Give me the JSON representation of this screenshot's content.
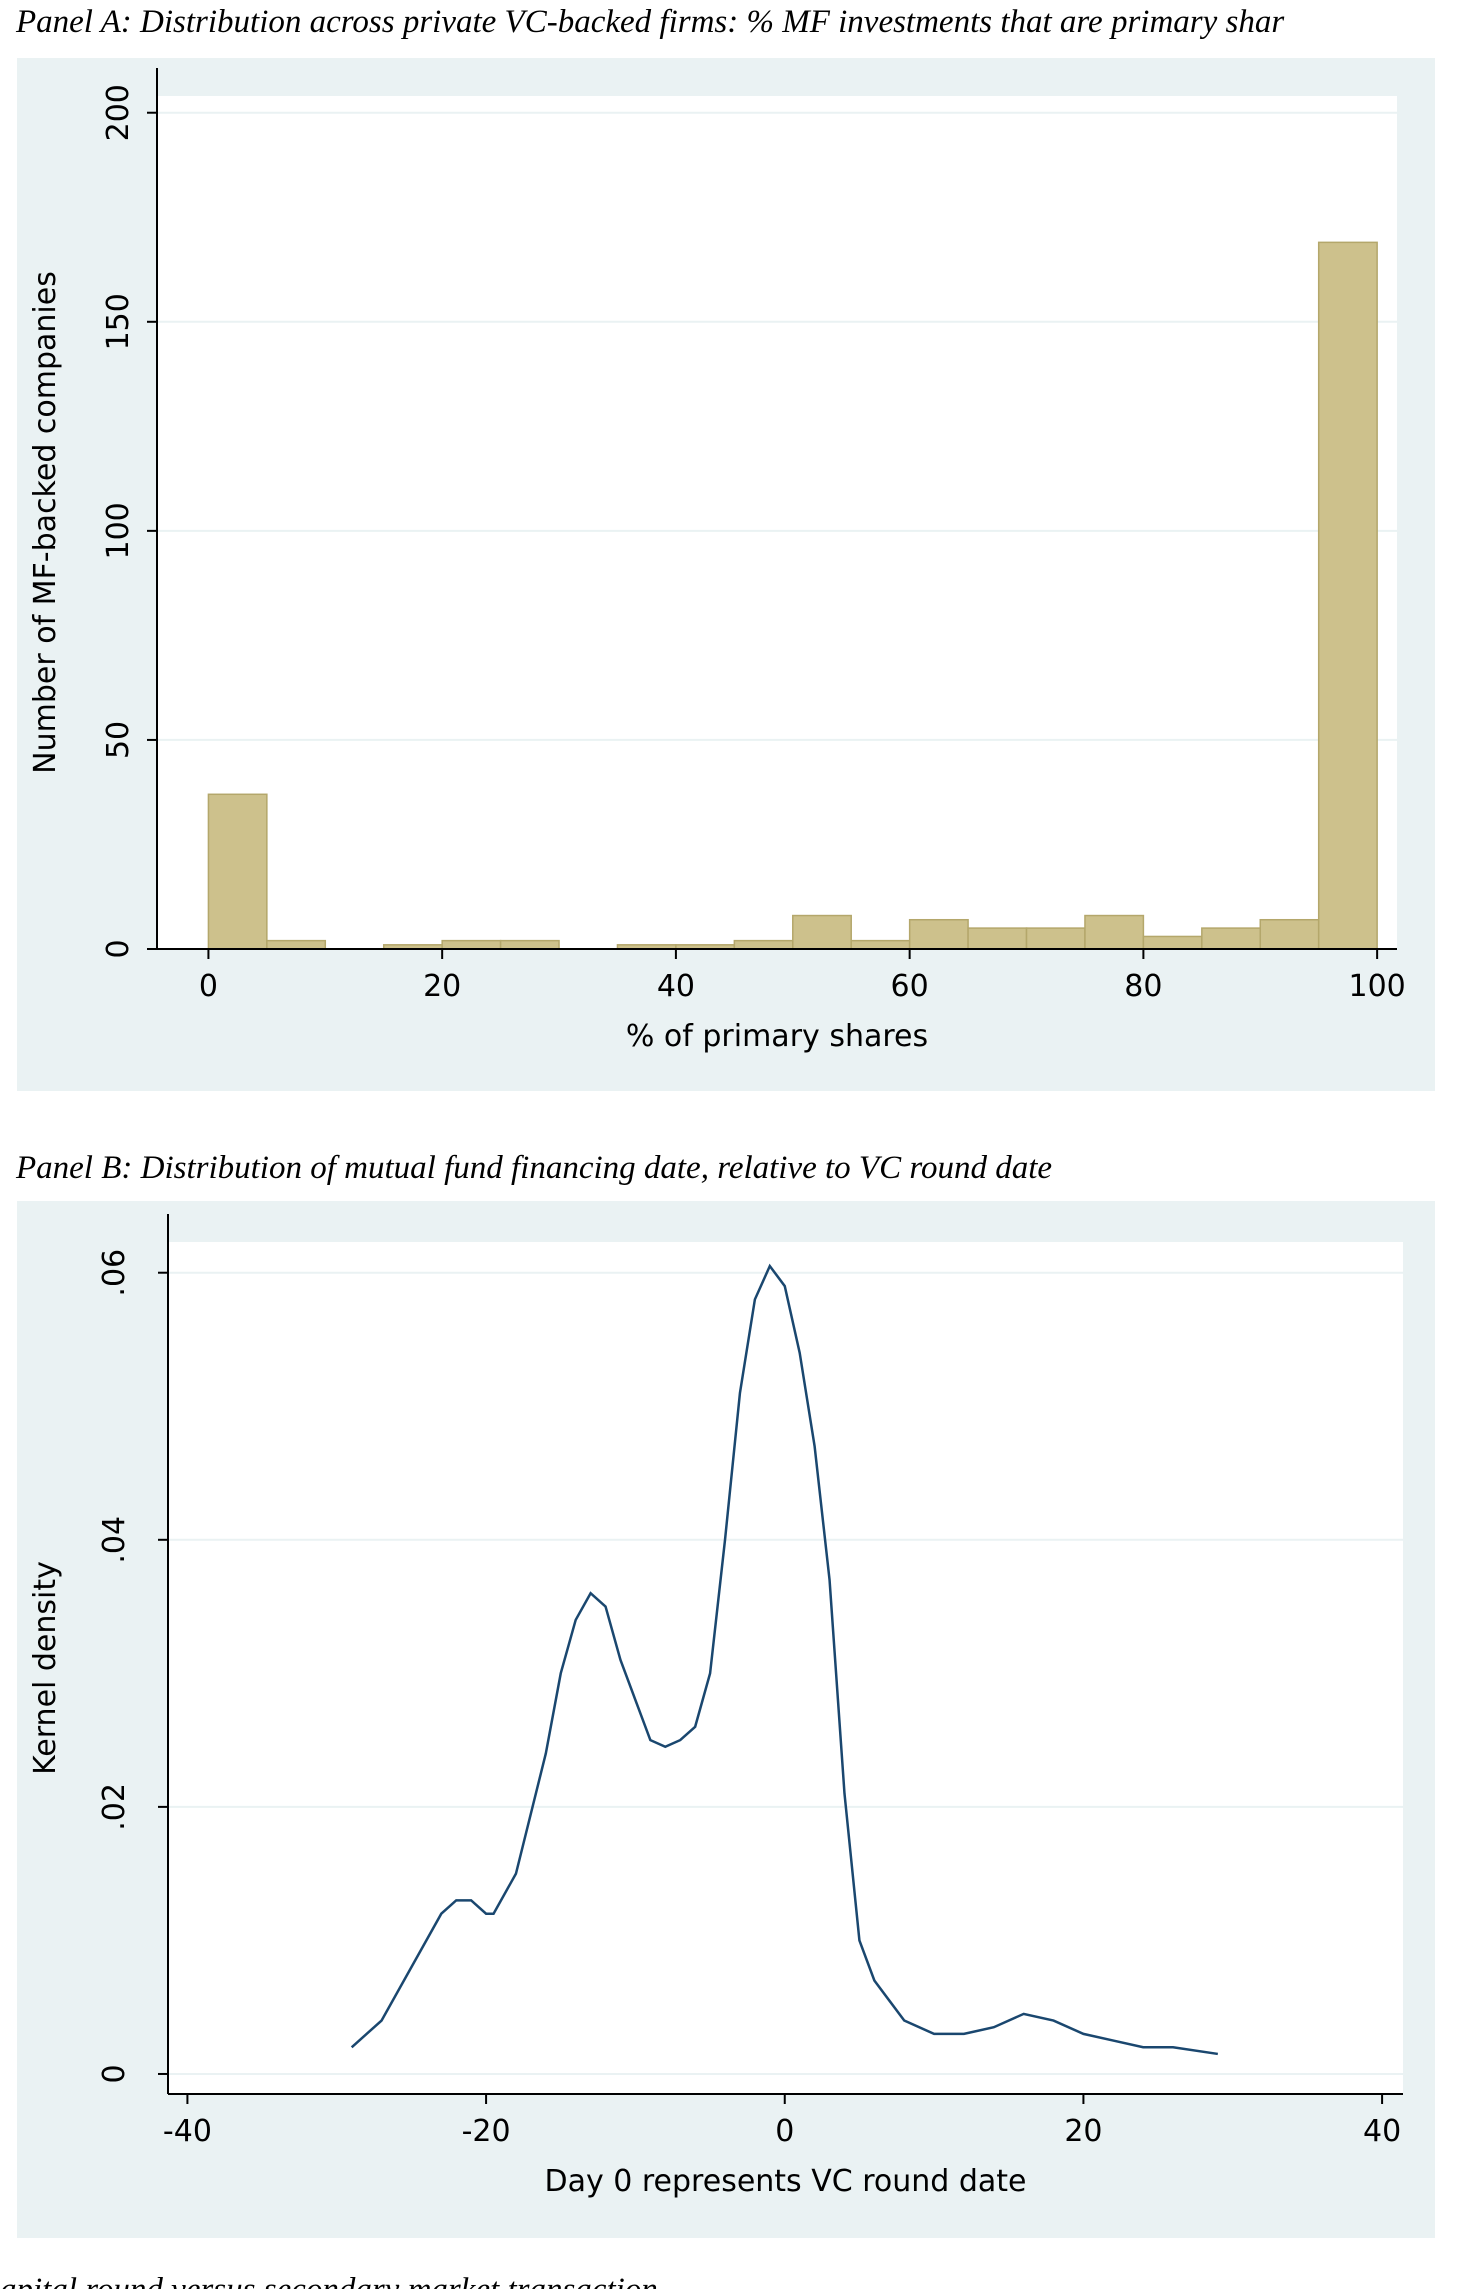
{
  "chart_data": [
    {
      "type": "histogram",
      "title": "Panel A: Distribution across private VC-backed firms: % MF investments that are primary shar",
      "x_label": "% of primary shares",
      "y_label": "Number of MF-backed companies",
      "bins": [
        0,
        5,
        10,
        15,
        20,
        25,
        30,
        35,
        40,
        45,
        50,
        55,
        60,
        65,
        70,
        75,
        80,
        85,
        90,
        95,
        100
      ],
      "values": [
        37,
        2,
        0,
        1,
        2,
        2,
        0,
        1,
        1,
        2,
        8,
        2,
        7,
        5,
        5,
        8,
        3,
        5,
        7,
        169
      ],
      "color": "#cdc18c",
      "xlim": [
        -4.4,
        101.7
      ],
      "xticks": [
        0,
        20,
        40,
        60,
        80,
        100
      ],
      "ylim": [
        0,
        204
      ],
      "yticks": [
        0,
        50,
        100,
        150,
        200
      ],
      "grid": true
    },
    {
      "type": "line",
      "title": "Panel B: Distribution of mutual fund financing date, relative to VC round date",
      "x_label": "Day 0 represents VC round date",
      "y_label": "Kernel density",
      "x": [
        -29,
        -27,
        -25,
        -23,
        -22,
        -21,
        -20,
        -19.5,
        -18,
        -16,
        -15,
        -14,
        -13,
        -12,
        -11,
        -10,
        -9,
        -8,
        -7,
        -6,
        -5,
        -4,
        -3,
        -2,
        -1,
        0,
        1,
        2,
        3,
        4,
        5,
        6,
        8,
        10,
        12,
        14,
        16,
        18,
        20,
        22,
        24,
        26,
        29
      ],
      "values": [
        0.002,
        0.004,
        0.008,
        0.012,
        0.013,
        0.013,
        0.012,
        0.012,
        0.015,
        0.024,
        0.03,
        0.034,
        0.036,
        0.035,
        0.031,
        0.028,
        0.025,
        0.0245,
        0.025,
        0.026,
        0.03,
        0.04,
        0.051,
        0.058,
        0.0605,
        0.059,
        0.054,
        0.047,
        0.037,
        0.021,
        0.01,
        0.007,
        0.004,
        0.003,
        0.003,
        0.0035,
        0.0045,
        0.004,
        0.003,
        0.0025,
        0.002,
        0.002,
        0.0015
      ],
      "color": "#1a476f",
      "xlim": [
        -41.3,
        41.4
      ],
      "xticks": [
        -40,
        -20,
        0,
        20,
        40
      ],
      "ylim": [
        -0.0015,
        0.0623
      ],
      "yticks": [
        {
          "value": 0,
          "label": "0"
        },
        {
          "value": 0.02,
          "label": ".02"
        },
        {
          "value": 0.04,
          "label": ".04"
        },
        {
          "value": 0.06,
          "label": ".06"
        }
      ],
      "grid": true
    }
  ],
  "caption": "apital round versus secondary market transaction"
}
